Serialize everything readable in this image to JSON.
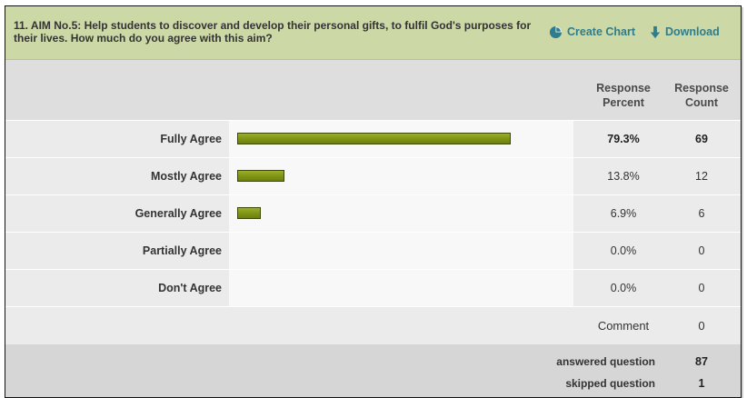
{
  "question": {
    "text": "11. AIM No.5: Help students to discover and develop their personal gifts, to fulfil God's purposes for their lives. How much do you agree with this aim?"
  },
  "actions": {
    "create_chart": "Create Chart",
    "download": "Download"
  },
  "columns": {
    "response_percent": "Response Percent",
    "response_count": "Response Count"
  },
  "colors": {
    "header_bg": "#ccd8a6",
    "link": "#2e7d8c",
    "bar": "#7f9314"
  },
  "chart_data": {
    "type": "bar",
    "orientation": "horizontal",
    "categories": [
      "Fully Agree",
      "Mostly Agree",
      "Generally Agree",
      "Partially Agree",
      "Don't Agree"
    ],
    "series": [
      {
        "values": [
          79.3,
          13.8,
          6.9,
          0.0,
          0.0
        ]
      }
    ],
    "percent_labels": [
      "79.3%",
      "13.8%",
      "6.9%",
      "0.0%",
      "0.0%"
    ],
    "counts": [
      "69",
      "12",
      "6",
      "0",
      "0"
    ],
    "bold_rows": [
      true,
      false,
      false,
      false,
      false
    ],
    "xlim": [
      0,
      100
    ]
  },
  "comment": {
    "label": "Comment",
    "count": "0"
  },
  "summary": {
    "answered_label": "answered question",
    "answered_value": "87",
    "skipped_label": "skipped question",
    "skipped_value": "1"
  }
}
